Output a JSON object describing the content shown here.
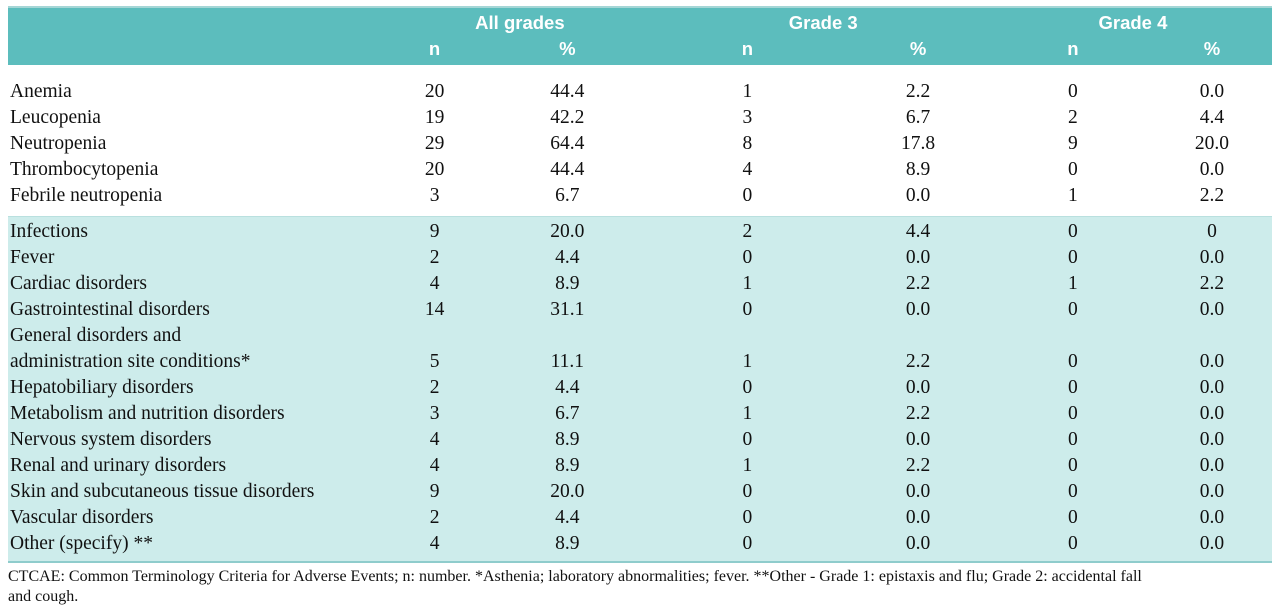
{
  "table": {
    "col_groups": [
      {
        "label": "All grades"
      },
      {
        "label": "Grade 3"
      },
      {
        "label": "Grade 4"
      }
    ],
    "sub_headers": [
      "n",
      "%"
    ],
    "sections": [
      {
        "shaded": false,
        "rows": [
          {
            "label": "Anemia",
            "values": [
              "20",
              "44.4",
              "1",
              "2.2",
              "0",
              "0.0"
            ]
          },
          {
            "label": "Leucopenia",
            "values": [
              "19",
              "42.2",
              "3",
              "6.7",
              "2",
              "4.4"
            ]
          },
          {
            "label": "Neutropenia",
            "values": [
              "29",
              "64.4",
              "8",
              "17.8",
              "9",
              "20.0"
            ]
          },
          {
            "label": "Thrombocytopenia",
            "values": [
              "20",
              "44.4",
              "4",
              "8.9",
              "0",
              "0.0"
            ]
          },
          {
            "label": "Febrile neutropenia",
            "values": [
              "3",
              "6.7",
              "0",
              "0.0",
              "1",
              "2.2"
            ]
          }
        ]
      },
      {
        "shaded": true,
        "rows": [
          {
            "label": "Infections",
            "values": [
              "9",
              "20.0",
              "2",
              "4.4",
              "0",
              "0"
            ]
          },
          {
            "label": "Fever",
            "values": [
              "2",
              "4.4",
              "0",
              "0.0",
              "0",
              "0.0"
            ]
          },
          {
            "label": "Cardiac disorders",
            "values": [
              "4",
              "8.9",
              "1",
              "2.2",
              "1",
              "2.2"
            ]
          },
          {
            "label": "Gastrointestinal disorders",
            "values": [
              "14",
              "31.1",
              "0",
              "0.0",
              "0",
              "0.0"
            ]
          },
          {
            "label": "General disorders and",
            "label2": "administration site conditions*",
            "values": [
              "5",
              "11.1",
              "1",
              "2.2",
              "0",
              "0.0"
            ]
          },
          {
            "label": "Hepatobiliary disorders",
            "values": [
              "2",
              "4.4",
              "0",
              "0.0",
              "0",
              "0.0"
            ]
          },
          {
            "label": "Metabolism and nutrition disorders",
            "values": [
              "3",
              "6.7",
              "1",
              "2.2",
              "0",
              "0.0"
            ]
          },
          {
            "label": "Nervous system disorders",
            "values": [
              "4",
              "8.9",
              "0",
              "0.0",
              "0",
              "0.0"
            ]
          },
          {
            "label": "Renal and urinary disorders",
            "values": [
              "4",
              "8.9",
              "1",
              "2.2",
              "0",
              "0.0"
            ]
          },
          {
            "label": "Skin and subcutaneous tissue disorders",
            "values": [
              "9",
              "20.0",
              "0",
              "0.0",
              "0",
              "0.0"
            ]
          },
          {
            "label": "Vascular disorders",
            "values": [
              "2",
              "4.4",
              "0",
              "0.0",
              "0",
              "0.0"
            ]
          },
          {
            "label": "Other (specify) **",
            "values": [
              "4",
              "8.9",
              "0",
              "0.0",
              "0",
              "0.0"
            ]
          }
        ]
      }
    ],
    "footnote": {
      "line1": "CTCAE: Common Terminology Criteria for Adverse Events; n: number. *Asthenia; laboratory abnormalities; fever. **Other - Grade 1: epistaxis and flu; Grade 2: accidental fall",
      "line2": "and cough."
    }
  },
  "colors": {
    "header_bg": "#5cbdbd",
    "shaded_row_bg": "#cdeceb",
    "divider": "#8fcccc",
    "header_text": "#ffffff",
    "body_text": "#111111"
  }
}
